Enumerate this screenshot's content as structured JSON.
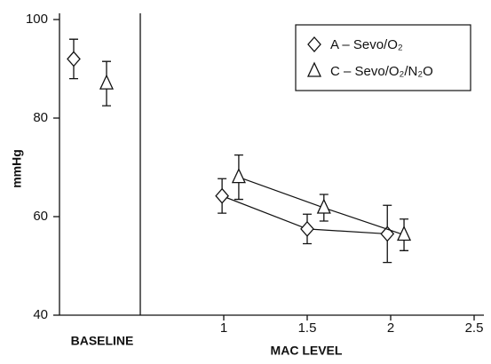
{
  "chart_data": {
    "type": "line",
    "ylabel": "mmHg",
    "xlabel": "MAC LEVEL",
    "baseline_label": "BASELINE",
    "xlim": [
      0,
      2.5
    ],
    "xticks": [
      1,
      1.5,
      2,
      2.5
    ],
    "ylim": [
      40,
      100
    ],
    "yticks": [
      40,
      60,
      80,
      100
    ],
    "legend": "upper right",
    "series": [
      {
        "name": "A – Sevo/O₂",
        "marker": "diamond",
        "color": "#111",
        "baseline": 92,
        "baseline_error": 4,
        "x": [
          0.99,
          1.5,
          1.98
        ],
        "values": [
          64.2,
          57.5,
          56.5
        ],
        "errors": [
          3.5,
          3,
          5.8
        ]
      },
      {
        "name": "C – Sevo/O₂/N₂O",
        "marker": "triangle",
        "color": "#111",
        "baseline": 87,
        "baseline_error": 4.5,
        "x": [
          1.09,
          1.6,
          2.08
        ],
        "values": [
          68,
          61.8,
          56.3
        ],
        "errors": [
          4.5,
          2.7,
          3.2
        ]
      }
    ]
  }
}
